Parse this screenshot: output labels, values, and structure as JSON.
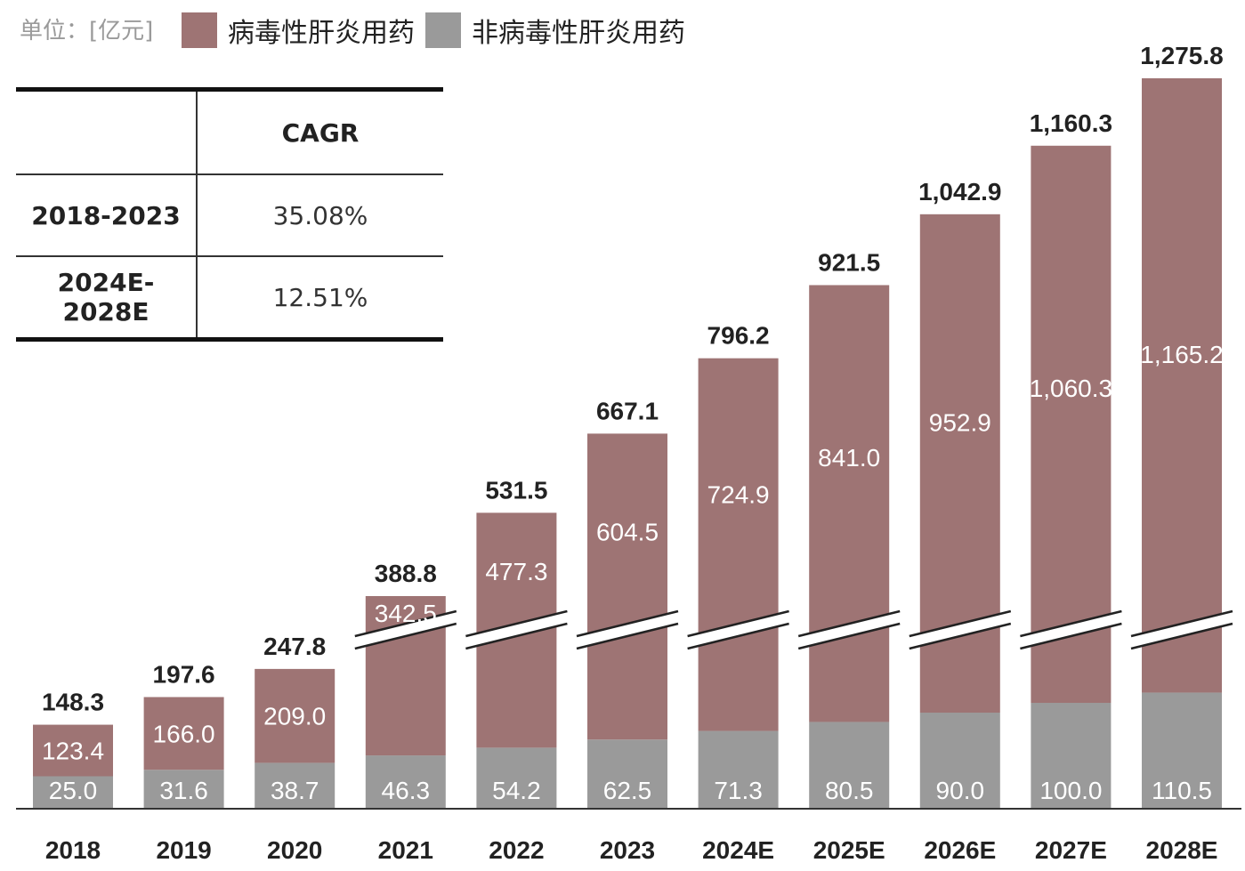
{
  "unit_label": "单位：[亿元]",
  "legend": [
    {
      "label": "病毒性肝炎用药",
      "color": "#9e7474"
    },
    {
      "label": "非病毒性肝炎用药",
      "color": "#9a9a9a"
    }
  ],
  "table": {
    "header": [
      "",
      "CAGR"
    ],
    "rows": [
      [
        "2018-2023",
        "35.08%"
      ],
      [
        "2024E-2028E",
        "12.51%"
      ]
    ]
  },
  "chart_data": {
    "type": "bar",
    "stacked": true,
    "categories": [
      "2018",
      "2019",
      "2020",
      "2021",
      "2022",
      "2023",
      "2024E",
      "2025E",
      "2026E",
      "2027E",
      "2028E"
    ],
    "series": [
      {
        "name": "非病毒性肝炎用药",
        "color": "#9a9a9a",
        "values": [
          25.0,
          31.6,
          38.7,
          46.3,
          54.2,
          62.5,
          71.3,
          80.5,
          90.0,
          100.0,
          110.5
        ],
        "labels": [
          "25.0",
          "31.6",
          "38.7",
          "46.3",
          "54.2",
          "62.5",
          "71.3",
          "80.5",
          "90.0",
          "100.0",
          "110.5"
        ]
      },
      {
        "name": "病毒性肝炎用药",
        "color": "#9e7474",
        "values": [
          123.4,
          166.0,
          209.0,
          342.5,
          477.3,
          604.5,
          724.9,
          841.0,
          952.9,
          1060.3,
          1165.2
        ],
        "labels": [
          "123.4",
          "166.0",
          "209.0",
          "342.5",
          "477.3",
          "604.5",
          "724.9",
          "841.0",
          "952.9",
          "1,060.3",
          "1,165.2"
        ]
      }
    ],
    "totals": [
      148.3,
      197.6,
      247.8,
      388.8,
      531.5,
      667.1,
      796.2,
      921.5,
      1042.9,
      1160.3,
      1275.8
    ],
    "total_labels": [
      "148.3",
      "197.6",
      "247.8",
      "388.8",
      "531.5",
      "667.1",
      "796.2",
      "921.5",
      "1,042.9",
      "1,160.3",
      "1,275.8"
    ],
    "axis_break": true,
    "legend_position": "top",
    "grid": false
  }
}
